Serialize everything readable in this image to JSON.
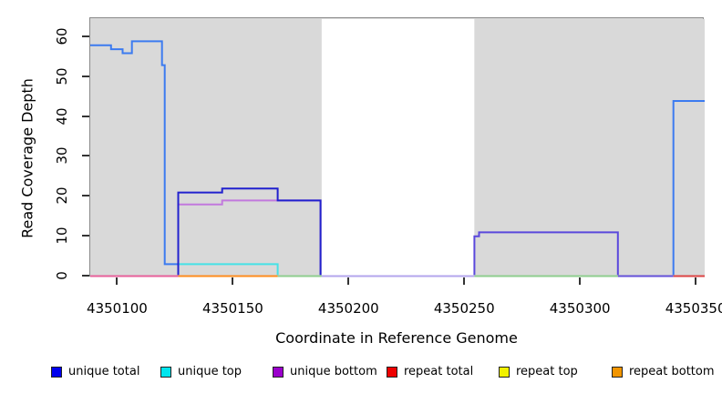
{
  "figure": {
    "x_axis_title": "Coordinate in Reference Genome",
    "y_axis_title": "Read Coverage Depth"
  },
  "legend": {
    "items": [
      {
        "label": "unique total",
        "color": "#0000ee"
      },
      {
        "label": "unique top",
        "color": "#00e5ee"
      },
      {
        "label": "unique bottom",
        "color": "#9a00cc"
      },
      {
        "label": "repeat total",
        "color": "#ee0000"
      },
      {
        "label": "repeat top",
        "color": "#f2f200"
      },
      {
        "label": "repeat bottom",
        "color": "#f29500"
      }
    ]
  },
  "chart_data": {
    "type": "line",
    "step": true,
    "title": "",
    "xlabel": "Coordinate in Reference Genome",
    "ylabel": "Read Coverage Depth",
    "xlim": [
      4350088,
      4350353.5
    ],
    "ylim": [
      0,
      64.8
    ],
    "grid": false,
    "legend_position": "bottom",
    "x_ticks": [
      4350100,
      4350150,
      4350200,
      4350250,
      4350300,
      4350350
    ],
    "y_ticks": [
      0,
      10,
      20,
      30,
      40,
      50,
      60
    ],
    "background_bands": [
      {
        "name": "shaded-region-left",
        "x0": 4350088,
        "x1": 4350188,
        "color": "#d9d9d9"
      },
      {
        "name": "unshaded-gap",
        "x0": 4350188,
        "x1": 4350254,
        "color": "#ffffff"
      },
      {
        "name": "shaded-region-right",
        "x0": 4350254,
        "x1": 4350353.5,
        "color": "#d9d9d9"
      }
    ],
    "series": [
      {
        "name": "unique total",
        "color": "#0000ee",
        "steps": [
          [
            4350088,
            58
          ],
          [
            4350097,
            57
          ],
          [
            4350102,
            56
          ],
          [
            4350106,
            59
          ],
          [
            4350119,
            53
          ],
          [
            4350120,
            3
          ],
          [
            4350126,
            21
          ],
          [
            4350145,
            22
          ],
          [
            4350169,
            19
          ],
          [
            4350188,
            0
          ],
          [
            4350254,
            10
          ],
          [
            4350256,
            11
          ],
          [
            4350316,
            0
          ],
          [
            4350340,
            44
          ],
          [
            4350353,
            44
          ]
        ]
      },
      {
        "name": "unique top",
        "color": "#00e5ee",
        "steps": [
          [
            4350088,
            0
          ],
          [
            4350126,
            3
          ],
          [
            4350169,
            0
          ],
          [
            4350353,
            0
          ]
        ]
      },
      {
        "name": "unique bottom",
        "color": "#9a00cc",
        "steps": [
          [
            4350088,
            0
          ],
          [
            4350126,
            18
          ],
          [
            4350145,
            19
          ],
          [
            4350188,
            0
          ],
          [
            4350254,
            10
          ],
          [
            4350256,
            11
          ],
          [
            4350316,
            0
          ],
          [
            4350353,
            0
          ]
        ]
      },
      {
        "name": "repeat total",
        "color": "#ee0000",
        "steps": [
          [
            4350088,
            0
          ],
          [
            4350353,
            0
          ]
        ]
      },
      {
        "name": "repeat top",
        "color": "#f2f200",
        "steps": [
          [
            4350088,
            0
          ],
          [
            4350353,
            0
          ]
        ]
      },
      {
        "name": "repeat bottom",
        "color": "#f29500",
        "steps": [
          [
            4350088,
            0
          ],
          [
            4350353,
            0
          ]
        ]
      }
    ],
    "render": {
      "baseline_segments": [
        {
          "name": "baseline-repeat-total-unique-bottom-overlap",
          "x0": 4350088,
          "x1": 4350126,
          "color": "#e7619b"
        },
        {
          "name": "baseline-repeat-bottom",
          "x0": 4350126,
          "x1": 4350169,
          "color": "#ff8c1e"
        },
        {
          "name": "baseline-top-overlap-green",
          "x0": 4350169,
          "x1": 4350188,
          "color": "#8fce8f"
        },
        {
          "name": "baseline-unique-bottom-gap",
          "x0": 4350188,
          "x1": 4350254,
          "color": "#b3a6ec"
        },
        {
          "name": "baseline-top-overlap-green-2",
          "x0": 4350254,
          "x1": 4350316,
          "color": "#8fce8f"
        },
        {
          "name": "baseline-blue-purple-overlap",
          "x0": 4350316,
          "x1": 4350340,
          "color": "#6450d8"
        },
        {
          "name": "baseline-repeat-total",
          "x0": 4350340,
          "x1": 4350353.5,
          "color": "#dc4444"
        }
      ],
      "polylines": [
        {
          "name": "unique-total-left",
          "color": "#3c7bf0",
          "points": [
            [
              4350088,
              58
            ],
            [
              4350097,
              58
            ],
            [
              4350097,
              57
            ],
            [
              4350102,
              57
            ],
            [
              4350102,
              56
            ],
            [
              4350106,
              56
            ],
            [
              4350106,
              59
            ],
            [
              4350119,
              59
            ],
            [
              4350119,
              53
            ],
            [
              4350120.2,
              53
            ],
            [
              4350120.2,
              3
            ],
            [
              4350126,
              3
            ]
          ]
        },
        {
          "name": "unique-top-line",
          "color": "#45e2e6",
          "points": [
            [
              4350126,
              3
            ],
            [
              4350169,
              3
            ],
            [
              4350169,
              0.3
            ]
          ]
        },
        {
          "name": "unique-bottom-line",
          "color": "#c279dd",
          "points": [
            [
              4350126,
              0.3
            ],
            [
              4350126,
              18
            ],
            [
              4350145,
              18
            ],
            [
              4350145,
              19
            ],
            [
              4350187.5,
              19
            ],
            [
              4350187.5,
              0.3
            ]
          ]
        },
        {
          "name": "unique-total-mid-box",
          "color": "#2121ce",
          "points": [
            [
              4350126,
              0.3
            ],
            [
              4350126,
              21
            ],
            [
              4350145,
              21
            ],
            [
              4350145,
              22
            ],
            [
              4350169,
              22
            ],
            [
              4350169,
              19
            ],
            [
              4350187.5,
              19
            ],
            [
              4350187.5,
              0.3
            ]
          ]
        },
        {
          "name": "unique-total-right-box",
          "color": "#5a48dc",
          "points": [
            [
              4350254,
              0.3
            ],
            [
              4350254,
              10
            ],
            [
              4350256,
              10
            ],
            [
              4350256,
              11
            ],
            [
              4350316,
              11
            ],
            [
              4350316,
              0.3
            ]
          ]
        },
        {
          "name": "unique-total-far-right",
          "color": "#3c7bf0",
          "points": [
            [
              4350340,
              0.3
            ],
            [
              4350340,
              44
            ],
            [
              4350353.5,
              44
            ]
          ]
        }
      ]
    }
  }
}
